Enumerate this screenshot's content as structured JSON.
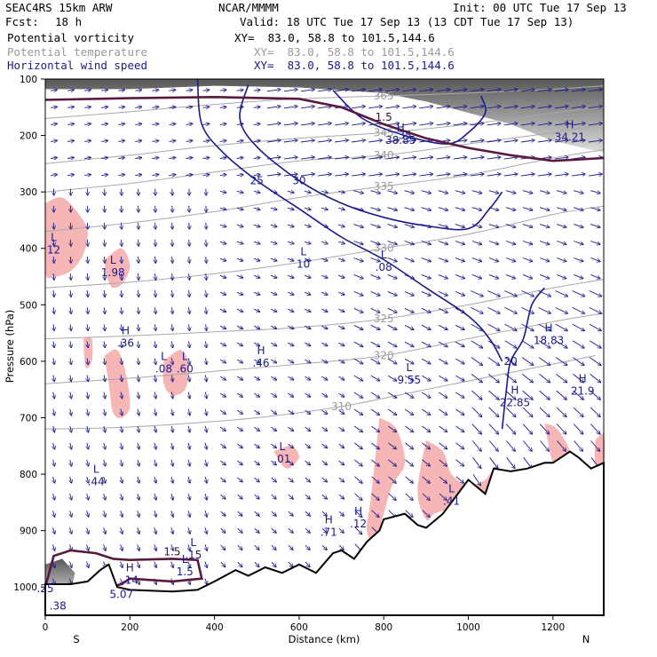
{
  "header": {
    "model": "SEAC4RS 15km ARW",
    "center": "NCAR/MMMM",
    "init": "Init: 00 UTC Tue 17 Sep 13",
    "fcst_label": "Fcst:",
    "fcst_value": "18 h",
    "valid": "Valid: 18 UTC Tue 17 Sep 13 (13 CDT Tue 17 Sep 13)"
  },
  "fields": [
    {
      "name": "Potential vorticity",
      "xy": "XY=  83.0, 58.8 to 101.5,144.6",
      "color": "#000000"
    },
    {
      "name": "Potential temperature",
      "xy": "XY=  83.0, 58.8 to 101.5,144.6",
      "color": "#9a9a9a"
    },
    {
      "name": "Horizontal wind speed",
      "xy": "XY=  83.0, 58.8 to 101.5,144.6",
      "color": "#1a1a8c"
    }
  ],
  "chart_data": {
    "type": "cross-section",
    "xlabel": "Distance (km)",
    "ylabel": "Pressure (hPa)",
    "xlim": [
      0,
      1320
    ],
    "ylim": [
      1050,
      100
    ],
    "xticks": [
      0,
      200,
      400,
      600,
      800,
      1000,
      1200
    ],
    "yticks": [
      100,
      200,
      300,
      400,
      500,
      600,
      700,
      800,
      900,
      1000
    ],
    "x_endpoint_labels": {
      "left": "S",
      "right": "N"
    },
    "theta_isentropes": [
      {
        "label": "310",
        "points": [
          [
            0,
            720
          ],
          [
            150,
            718
          ],
          [
            300,
            712
          ],
          [
            500,
            700
          ],
          [
            700,
            680
          ],
          [
            900,
            650
          ],
          [
            1100,
            620
          ],
          [
            1300,
            590
          ]
        ]
      },
      {
        "label": "320",
        "points": [
          [
            0,
            640
          ],
          [
            200,
            630
          ],
          [
            400,
            618
          ],
          [
            600,
            605
          ],
          [
            800,
            590
          ],
          [
            1000,
            560
          ],
          [
            1200,
            530
          ],
          [
            1320,
            515
          ]
        ]
      },
      {
        "label": "325",
        "points": [
          [
            0,
            560
          ],
          [
            200,
            555
          ],
          [
            400,
            548
          ],
          [
            600,
            540
          ],
          [
            800,
            525
          ],
          [
            1000,
            500
          ],
          [
            1200,
            470
          ],
          [
            1320,
            455
          ]
        ]
      },
      {
        "label": "330",
        "points": [
          [
            0,
            470
          ],
          [
            200,
            460
          ],
          [
            400,
            445
          ],
          [
            600,
            425
          ],
          [
            800,
            400
          ],
          [
            1000,
            375
          ],
          [
            1200,
            340
          ],
          [
            1320,
            325
          ]
        ]
      },
      {
        "label": "335",
        "points": [
          [
            0,
            370
          ],
          [
            200,
            355
          ],
          [
            400,
            335
          ],
          [
            600,
            310
          ],
          [
            800,
            290
          ],
          [
            1000,
            270
          ],
          [
            1200,
            240
          ],
          [
            1320,
            225
          ]
        ]
      },
      {
        "label": "340",
        "points": [
          [
            0,
            300
          ],
          [
            200,
            285
          ],
          [
            400,
            265
          ],
          [
            600,
            245
          ],
          [
            800,
            235
          ],
          [
            1000,
            215
          ],
          [
            1200,
            195
          ],
          [
            1320,
            180
          ]
        ]
      },
      {
        "label": "345",
        "points": [
          [
            0,
            250
          ],
          [
            200,
            235
          ],
          [
            400,
            218
          ],
          [
            600,
            205
          ],
          [
            800,
            195
          ],
          [
            1000,
            180
          ],
          [
            1200,
            160
          ],
          [
            1320,
            150
          ]
        ]
      },
      {
        "label": "365",
        "points": [
          [
            0,
            170
          ],
          [
            200,
            158
          ],
          [
            400,
            145
          ],
          [
            600,
            135
          ],
          [
            800,
            130
          ],
          [
            1000,
            125
          ],
          [
            1200,
            118
          ],
          [
            1320,
            112
          ]
        ]
      }
    ],
    "pv_contours": [
      {
        "label": "1.5",
        "points": [
          [
            0,
            137
          ],
          [
            200,
            134
          ],
          [
            400,
            132
          ],
          [
            600,
            135
          ],
          [
            700,
            150
          ],
          [
            800,
            180
          ],
          [
            900,
            205
          ],
          [
            1000,
            222
          ],
          [
            1100,
            235
          ],
          [
            1200,
            245
          ],
          [
            1320,
            240
          ]
        ]
      },
      {
        "label": "1.5",
        "points": [
          [
            0,
            1000
          ],
          [
            20,
            945
          ],
          [
            60,
            935
          ],
          [
            120,
            940
          ],
          [
            160,
            950
          ],
          [
            200,
            952
          ],
          [
            300,
            950
          ],
          [
            360,
            952
          ],
          [
            370,
            985
          ],
          [
            300,
            990
          ],
          [
            200,
            985
          ],
          [
            180,
            995
          ],
          [
            150,
            1000
          ]
        ]
      }
    ],
    "wind_speed_contours": [
      {
        "label": "20",
        "points": [
          [
            1080,
            720
          ],
          [
            1090,
            650
          ],
          [
            1100,
            600
          ],
          [
            1130,
            560
          ],
          [
            1150,
            500
          ],
          [
            1180,
            470
          ]
        ]
      },
      {
        "label": "25",
        "points": [
          [
            360,
            100
          ],
          [
            370,
            180
          ],
          [
            420,
            230
          ],
          [
            500,
            280
          ],
          [
            600,
            330
          ],
          [
            700,
            380
          ],
          [
            800,
            420
          ],
          [
            900,
            470
          ],
          [
            1000,
            520
          ],
          [
            1050,
            560
          ],
          [
            1080,
            600
          ]
        ]
      },
      {
        "label": "30",
        "points": [
          [
            480,
            110
          ],
          [
            460,
            170
          ],
          [
            500,
            220
          ],
          [
            600,
            280
          ],
          [
            700,
            320
          ],
          [
            800,
            345
          ],
          [
            900,
            360
          ],
          [
            1000,
            365
          ],
          [
            1050,
            330
          ],
          [
            1080,
            300
          ]
        ]
      },
      {
        "label": "35",
        "points": [
          [
            680,
            120
          ],
          [
            750,
            170
          ],
          [
            850,
            200
          ],
          [
            950,
            215
          ],
          [
            1000,
            195
          ],
          [
            1040,
            160
          ],
          [
            1030,
            130
          ]
        ]
      }
    ],
    "markers": [
      {
        "type": "L",
        "value": "12",
        "x": 20,
        "p": 400
      },
      {
        "type": "L",
        "value": "1.98",
        "x": 160,
        "p": 440
      },
      {
        "type": "H",
        "value": ".36",
        "x": 190,
        "p": 565
      },
      {
        "type": "L",
        "value": ".08",
        "x": 280,
        "p": 610
      },
      {
        "type": "L",
        "value": ".60",
        "x": 330,
        "p": 610
      },
      {
        "type": "H",
        "value": ".46",
        "x": 510,
        "p": 600
      },
      {
        "type": "L",
        "value": "10",
        "x": 610,
        "p": 425
      },
      {
        "type": "L",
        "value": ".08",
        "x": 800,
        "p": 430
      },
      {
        "type": "L",
        "value": "9.55",
        "x": 860,
        "p": 630
      },
      {
        "type": "H",
        "value": "38.85",
        "x": 840,
        "p": 205
      },
      {
        "type": "H",
        "value": "34.21",
        "x": 1240,
        "p": 200
      },
      {
        "type": "H",
        "value": "18.83",
        "x": 1190,
        "p": 560
      },
      {
        "type": "H",
        "value": "21.9",
        "x": 1270,
        "p": 650
      },
      {
        "type": "H",
        "value": "22.85",
        "x": 1110,
        "p": 670
      },
      {
        "type": "L",
        "value": ".01",
        "x": 560,
        "p": 770
      },
      {
        "type": "L",
        "value": ".44",
        "x": 120,
        "p": 810
      },
      {
        "type": "L",
        "value": ".41",
        "x": 960,
        "p": 845
      },
      {
        "type": "H",
        "value": ".71",
        "x": 670,
        "p": 900
      },
      {
        "type": "H",
        "value": ".12",
        "x": 740,
        "p": 885
      },
      {
        "type": "L",
        "value": ".15",
        "x": 350,
        "p": 940
      },
      {
        "type": "L",
        "value": "1.5",
        "x": 330,
        "p": 970
      },
      {
        "type": "H",
        "value": ".14",
        "x": 200,
        "p": 985
      },
      {
        "type": "",
        "value": "5.07",
        "x": 180,
        "p": 1010
      },
      {
        "type": "",
        "value": ".25",
        "x": 0,
        "p": 1000
      },
      {
        "type": "",
        "value": ".38",
        "x": 30,
        "p": 1030
      }
    ],
    "terrain_top": [
      [
        0,
        1050
      ],
      [
        0,
        995
      ],
      [
        60,
        995
      ],
      [
        100,
        990
      ],
      [
        130,
        970
      ],
      [
        150,
        960
      ],
      [
        170,
        1000
      ],
      [
        200,
        1005
      ],
      [
        300,
        1008
      ],
      [
        360,
        1005
      ],
      [
        400,
        990
      ],
      [
        450,
        970
      ],
      [
        480,
        980
      ],
      [
        520,
        965
      ],
      [
        560,
        975
      ],
      [
        600,
        960
      ],
      [
        640,
        975
      ],
      [
        680,
        940
      ],
      [
        700,
        935
      ],
      [
        730,
        950
      ],
      [
        760,
        920
      ],
      [
        790,
        900
      ],
      [
        800,
        880
      ],
      [
        850,
        870
      ],
      [
        880,
        890
      ],
      [
        900,
        895
      ],
      [
        940,
        870
      ],
      [
        960,
        850
      ],
      [
        1000,
        810
      ],
      [
        1040,
        835
      ],
      [
        1060,
        790
      ],
      [
        1100,
        795
      ],
      [
        1140,
        790
      ],
      [
        1180,
        780
      ],
      [
        1200,
        780
      ],
      [
        1240,
        760
      ],
      [
        1260,
        770
      ],
      [
        1290,
        790
      ],
      [
        1320,
        780
      ],
      [
        1320,
        1050
      ]
    ],
    "pink_regions": [
      [
        [
          0,
          320
        ],
        [
          40,
          310
        ],
        [
          80,
          340
        ],
        [
          100,
          370
        ],
        [
          90,
          410
        ],
        [
          60,
          440
        ],
        [
          20,
          450
        ],
        [
          0,
          440
        ]
      ],
      [
        [
          140,
          420
        ],
        [
          180,
          400
        ],
        [
          200,
          430
        ],
        [
          185,
          460
        ],
        [
          160,
          470
        ],
        [
          145,
          450
        ]
      ],
      [
        [
          280,
          600
        ],
        [
          320,
          580
        ],
        [
          340,
          610
        ],
        [
          330,
          650
        ],
        [
          300,
          660
        ],
        [
          280,
          640
        ]
      ],
      [
        [
          140,
          590
        ],
        [
          170,
          580
        ],
        [
          190,
          620
        ],
        [
          200,
          680
        ],
        [
          180,
          700
        ],
        [
          160,
          690
        ],
        [
          150,
          640
        ]
      ],
      [
        [
          90,
          560
        ],
        [
          110,
          560
        ],
        [
          110,
          600
        ],
        [
          95,
          610
        ]
      ],
      [
        [
          540,
          760
        ],
        [
          580,
          750
        ],
        [
          600,
          770
        ],
        [
          570,
          790
        ]
      ],
      [
        [
          790,
          700
        ],
        [
          830,
          720
        ],
        [
          850,
          780
        ],
        [
          820,
          820
        ],
        [
          800,
          870
        ],
        [
          780,
          920
        ],
        [
          760,
          900
        ],
        [
          770,
          840
        ]
      ],
      [
        [
          900,
          740
        ],
        [
          940,
          760
        ],
        [
          960,
          800
        ],
        [
          1000,
          820
        ],
        [
          1040,
          810
        ],
        [
          1060,
          790
        ],
        [
          1050,
          830
        ],
        [
          1000,
          850
        ],
        [
          960,
          860
        ],
        [
          920,
          870
        ],
        [
          900,
          880
        ],
        [
          880,
          830
        ]
      ],
      [
        [
          1180,
          710
        ],
        [
          1210,
          720
        ],
        [
          1240,
          760
        ],
        [
          1220,
          770
        ],
        [
          1200,
          780
        ]
      ],
      [
        [
          1300,
          740
        ],
        [
          1320,
          730
        ],
        [
          1320,
          780
        ],
        [
          1300,
          780
        ]
      ]
    ],
    "gray_regions": [
      [
        [
          0,
          100
        ],
        [
          1320,
          100
        ],
        [
          1320,
          230
        ],
        [
          1200,
          210
        ],
        [
          1100,
          180
        ],
        [
          1000,
          160
        ],
        [
          900,
          140
        ],
        [
          800,
          125
        ],
        [
          600,
          115
        ],
        [
          400,
          112
        ],
        [
          200,
          118
        ],
        [
          0,
          118
        ]
      ],
      [
        [
          0,
          960
        ],
        [
          40,
          950
        ],
        [
          70,
          975
        ],
        [
          60,
          1010
        ],
        [
          20,
          1020
        ],
        [
          0,
          1015
        ]
      ]
    ]
  }
}
